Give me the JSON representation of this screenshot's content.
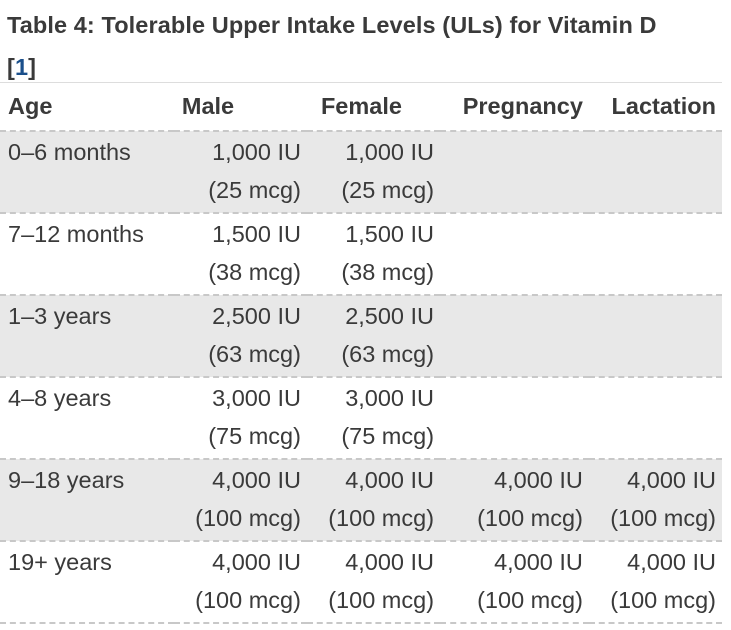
{
  "caption": {
    "title": "Table 4: Tolerable Upper Intake Levels (ULs) for Vitamin D",
    "ref_open": "[",
    "ref_num": "1",
    "ref_close": "]"
  },
  "table": {
    "headers": [
      "Age",
      "Male",
      "Female",
      "Pregnancy",
      "Lactation"
    ],
    "rows": [
      {
        "age": "0–6 months",
        "male": [
          "1,000 IU",
          "(25 mcg)"
        ],
        "female": [
          "1,000 IU",
          "(25 mcg)"
        ],
        "pregnancy": [
          "",
          ""
        ],
        "lactation": [
          "",
          ""
        ]
      },
      {
        "age": "7–12 months",
        "male": [
          "1,500 IU",
          "(38 mcg)"
        ],
        "female": [
          "1,500 IU",
          "(38 mcg)"
        ],
        "pregnancy": [
          "",
          ""
        ],
        "lactation": [
          "",
          ""
        ]
      },
      {
        "age": "1–3 years",
        "male": [
          "2,500 IU",
          "(63 mcg)"
        ],
        "female": [
          "2,500 IU",
          "(63 mcg)"
        ],
        "pregnancy": [
          "",
          ""
        ],
        "lactation": [
          "",
          ""
        ]
      },
      {
        "age": "4–8 years",
        "male": [
          "3,000 IU",
          "(75 mcg)"
        ],
        "female": [
          "3,000 IU",
          "(75 mcg)"
        ],
        "pregnancy": [
          "",
          ""
        ],
        "lactation": [
          "",
          ""
        ]
      },
      {
        "age": "9–18 years",
        "male": [
          "4,000 IU",
          "(100 mcg)"
        ],
        "female": [
          "4,000 IU",
          "(100 mcg)"
        ],
        "pregnancy": [
          "4,000 IU",
          "(100 mcg)"
        ],
        "lactation": [
          "4,000 IU",
          "(100 mcg)"
        ]
      },
      {
        "age": "19+ years",
        "male": [
          "4,000 IU",
          "(100 mcg)"
        ],
        "female": [
          "4,000 IU",
          "(100 mcg)"
        ],
        "pregnancy": [
          "4,000 IU",
          "(100 mcg)"
        ],
        "lactation": [
          "4,000 IU",
          "(100 mcg)"
        ]
      }
    ]
  }
}
